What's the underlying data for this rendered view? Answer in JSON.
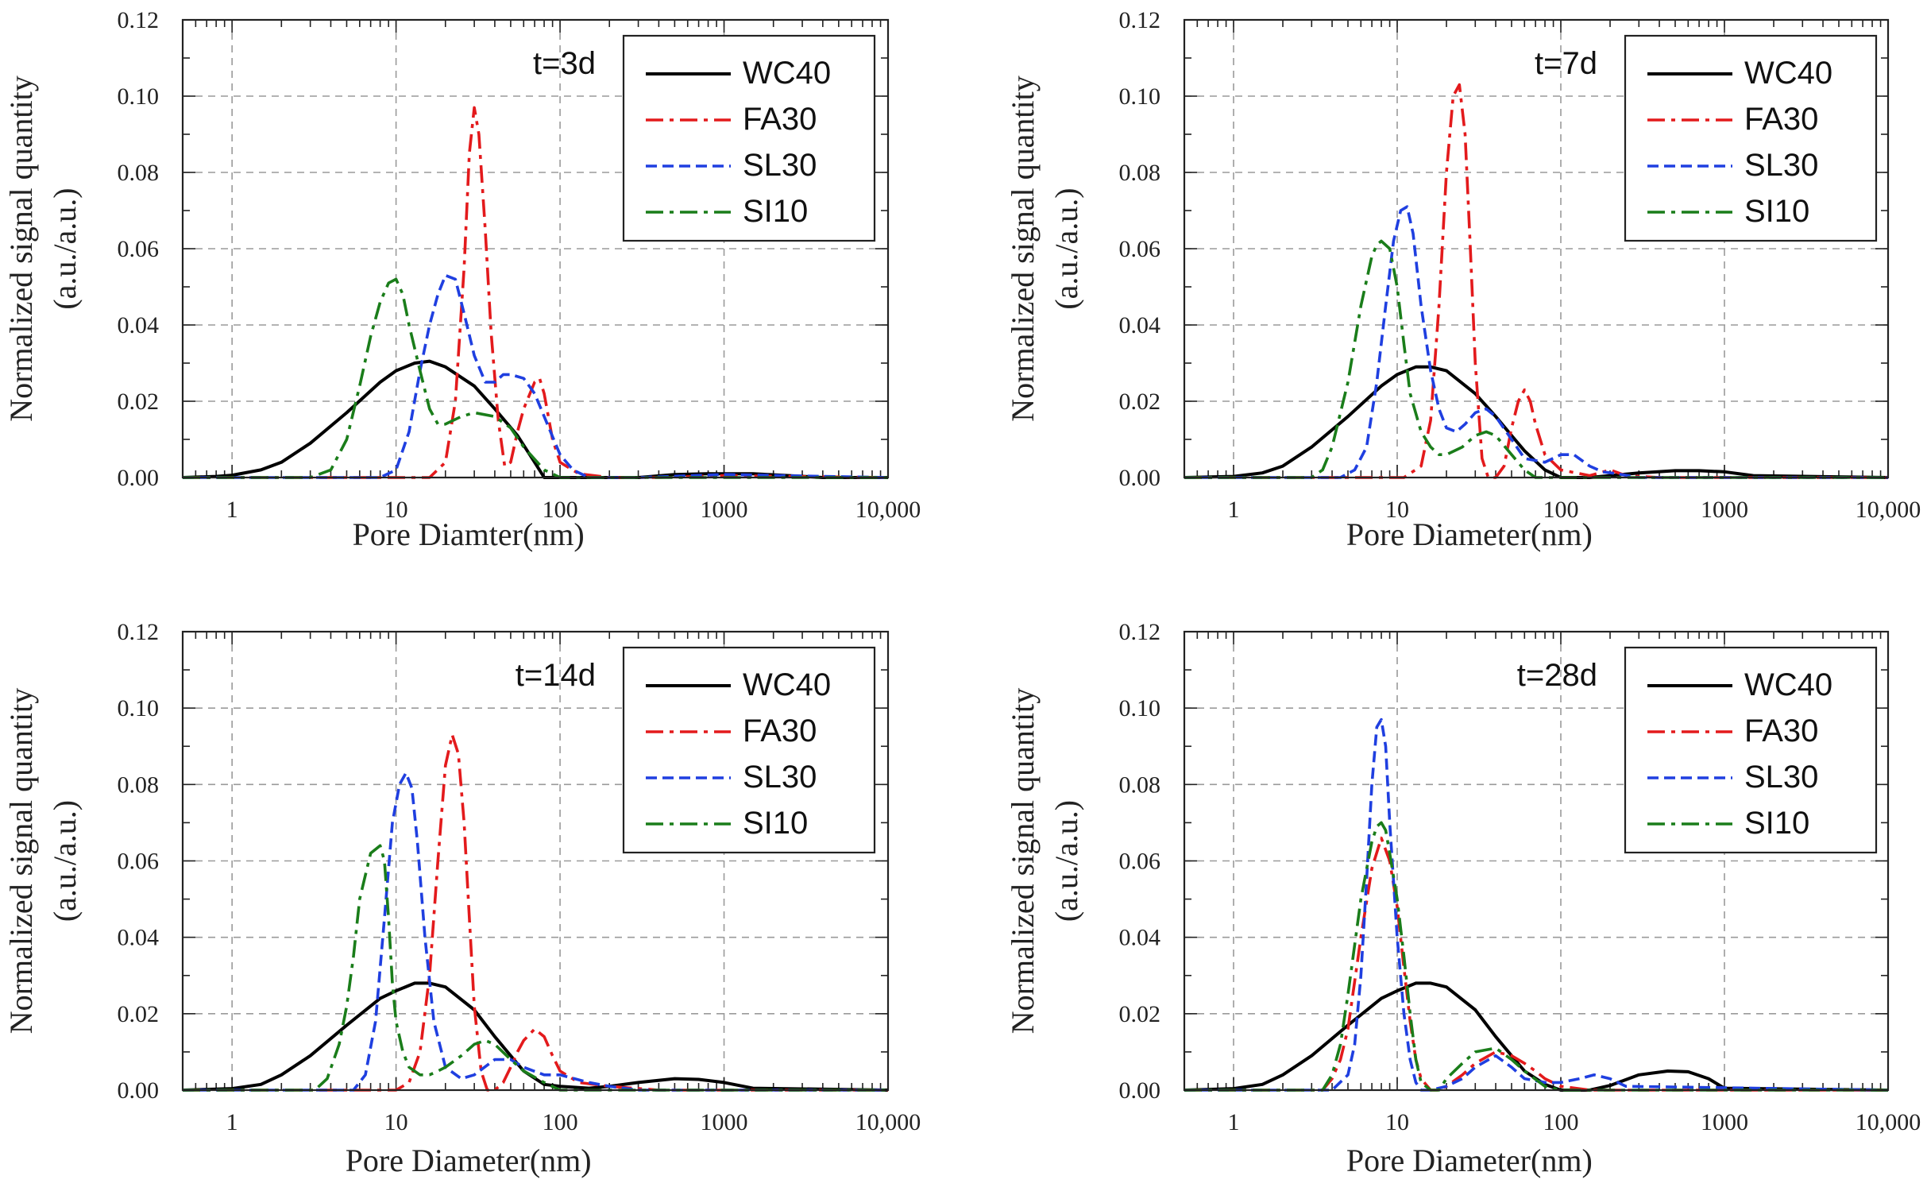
{
  "chart_data": [
    {
      "type": "line",
      "title": "t=3d",
      "xlabel": "Pore Diamter(nm)",
      "ylabel_line1": "Normalized signal quantity",
      "ylabel_line2": "(a.u./a.u.)",
      "xscale": "log",
      "xlim": [
        0.5,
        10000
      ],
      "ylim": [
        0,
        0.12
      ],
      "grid": true,
      "legend_position": "top-right",
      "x_ticks": [
        "1",
        "10",
        "100",
        "1000",
        "10,000"
      ],
      "y_ticks": [
        "0.00",
        "0.02",
        "0.04",
        "0.06",
        "0.08",
        "0.10",
        "0.12"
      ],
      "series": [
        {
          "name": "WC40",
          "color": "#000000",
          "style": "solid",
          "x": [
            0.5,
            0.8,
            1,
            1.5,
            2,
            3,
            5,
            8,
            10,
            13,
            16,
            20,
            30,
            40,
            55,
            70,
            80,
            100,
            150,
            300,
            500,
            800,
            1000,
            1500,
            2500,
            4000,
            10000
          ],
          "y": [
            0,
            0.0003,
            0.0006,
            0.002,
            0.004,
            0.009,
            0.017,
            0.025,
            0.028,
            0.03,
            0.0305,
            0.029,
            0.024,
            0.018,
            0.011,
            0.004,
            0,
            0,
            0,
            0,
            0.0008,
            0.001,
            0.001,
            0.001,
            0.0005,
            0,
            0
          ]
        },
        {
          "name": "FA30",
          "color": "#e31a1c",
          "style": "dashdot",
          "x": [
            0.5,
            10,
            16,
            20,
            23,
            26,
            28,
            30,
            32,
            35,
            38,
            42,
            46,
            50,
            55,
            60,
            70,
            75,
            80,
            90,
            100,
            130,
            200,
            400,
            1000,
            10000
          ],
          "y": [
            0,
            0,
            0,
            0.004,
            0.02,
            0.055,
            0.085,
            0.097,
            0.09,
            0.065,
            0.038,
            0.015,
            0.003,
            0.004,
            0.012,
            0.018,
            0.025,
            0.026,
            0.022,
            0.01,
            0.004,
            0.001,
            0,
            0,
            0.0005,
            0
          ]
        },
        {
          "name": "SL30",
          "color": "#1f3fe0",
          "style": "dash",
          "x": [
            0.5,
            8,
            10,
            12,
            14,
            16,
            18,
            20,
            23,
            26,
            30,
            35,
            40,
            45,
            50,
            60,
            70,
            80,
            100,
            120,
            150,
            300,
            1000,
            10000
          ],
          "y": [
            0,
            0,
            0.002,
            0.012,
            0.028,
            0.04,
            0.048,
            0.053,
            0.052,
            0.043,
            0.032,
            0.025,
            0.025,
            0.027,
            0.027,
            0.026,
            0.022,
            0.016,
            0.006,
            0.002,
            0,
            0,
            0.0008,
            0
          ]
        },
        {
          "name": "SI10",
          "color": "#1a7d1a",
          "style": "dashdot",
          "x": [
            0.5,
            3,
            4,
            5,
            6,
            7,
            8,
            9,
            10,
            11,
            12,
            14,
            16,
            18,
            20,
            25,
            30,
            40,
            50,
            60,
            80,
            100,
            10000
          ],
          "y": [
            0,
            0,
            0.002,
            0.01,
            0.024,
            0.037,
            0.046,
            0.051,
            0.052,
            0.048,
            0.04,
            0.028,
            0.018,
            0.014,
            0.014,
            0.016,
            0.017,
            0.016,
            0.013,
            0.008,
            0.002,
            0,
            0
          ]
        }
      ]
    },
    {
      "type": "line",
      "title": "t=7d",
      "xlabel": "Pore Diameter(nm)",
      "ylabel_line1": "Normalized signal quantity",
      "ylabel_line2": "(a.u./a.u.)",
      "xscale": "log",
      "xlim": [
        0.5,
        10000
      ],
      "ylim": [
        0,
        0.12
      ],
      "grid": true,
      "legend_position": "top-right",
      "x_ticks": [
        "1",
        "10",
        "100",
        "1000",
        "10,000"
      ],
      "y_ticks": [
        "0.00",
        "0.02",
        "0.04",
        "0.06",
        "0.08",
        "0.10",
        "0.12"
      ],
      "series": [
        {
          "name": "WC40",
          "color": "#000000",
          "style": "solid",
          "x": [
            0.5,
            1,
            1.5,
            2,
            3,
            5,
            8,
            10,
            13,
            16,
            20,
            30,
            40,
            50,
            60,
            80,
            100,
            150,
            300,
            500,
            700,
            1000,
            1500,
            10000
          ],
          "y": [
            0,
            0.0003,
            0.0012,
            0.003,
            0.008,
            0.016,
            0.024,
            0.027,
            0.029,
            0.029,
            0.028,
            0.022,
            0.016,
            0.011,
            0.007,
            0.002,
            0,
            0,
            0.0012,
            0.0018,
            0.0018,
            0.0015,
            0.0005,
            0
          ]
        },
        {
          "name": "FA30",
          "color": "#e31a1c",
          "style": "dashdot",
          "x": [
            0.5,
            11,
            14,
            16,
            18,
            20,
            22,
            24,
            26,
            28,
            30,
            33,
            36,
            40,
            45,
            50,
            55,
            60,
            65,
            70,
            80,
            100,
            150,
            200,
            250,
            400,
            10000
          ],
          "y": [
            0,
            0,
            0.003,
            0.015,
            0.045,
            0.08,
            0.1,
            0.103,
            0.09,
            0.06,
            0.03,
            0.005,
            0,
            0,
            0.003,
            0.013,
            0.02,
            0.023,
            0.02,
            0.014,
            0.006,
            0.002,
            0.0005,
            0.002,
            0.0005,
            0,
            0
          ]
        },
        {
          "name": "SL30",
          "color": "#1f3fe0",
          "style": "dash",
          "x": [
            0.5,
            4.5,
            5.5,
            6.5,
            7.5,
            8.5,
            9.5,
            10.5,
            11.5,
            12.5,
            14,
            16,
            18,
            20,
            23,
            26,
            30,
            35,
            40,
            50,
            60,
            80,
            100,
            120,
            150,
            180,
            220,
            300,
            10000
          ],
          "y": [
            0,
            0,
            0.002,
            0.008,
            0.025,
            0.045,
            0.062,
            0.07,
            0.071,
            0.064,
            0.045,
            0.028,
            0.018,
            0.013,
            0.012,
            0.014,
            0.017,
            0.018,
            0.016,
            0.01,
            0.005,
            0.004,
            0.006,
            0.006,
            0.003,
            0.0015,
            0.001,
            0,
            0
          ]
        },
        {
          "name": "SI10",
          "color": "#1a7d1a",
          "style": "dashdot",
          "x": [
            0.5,
            3,
            3.5,
            4,
            5,
            6,
            7,
            7.5,
            8,
            9,
            10,
            11,
            12,
            14,
            16,
            18,
            20,
            25,
            30,
            35,
            40,
            50,
            60,
            70,
            10000
          ],
          "y": [
            0,
            0,
            0.002,
            0.008,
            0.025,
            0.045,
            0.058,
            0.061,
            0.062,
            0.06,
            0.05,
            0.035,
            0.022,
            0.012,
            0.008,
            0.006,
            0.006,
            0.008,
            0.011,
            0.012,
            0.011,
            0.006,
            0.002,
            0,
            0
          ]
        }
      ]
    },
    {
      "type": "line",
      "title": "t=14d",
      "xlabel": "Pore Diameter(nm)",
      "ylabel_line1": "Normalized signal quantity",
      "ylabel_line2": "(a.u./a.u.)",
      "xscale": "log",
      "xlim": [
        0.5,
        10000
      ],
      "ylim": [
        0,
        0.12
      ],
      "grid": true,
      "legend_position": "top-right",
      "x_ticks": [
        "1",
        "10",
        "100",
        "1000",
        "10,000"
      ],
      "y_ticks": [
        "0.00",
        "0.02",
        "0.04",
        "0.06",
        "0.08",
        "0.10",
        "0.12"
      ],
      "series": [
        {
          "name": "WC40",
          "color": "#000000",
          "style": "solid",
          "x": [
            0.5,
            1,
            1.5,
            2,
            3,
            5,
            8,
            10,
            13,
            16,
            20,
            30,
            40,
            50,
            60,
            80,
            100,
            150,
            200,
            300,
            500,
            700,
            1000,
            1500,
            10000
          ],
          "y": [
            0,
            0.0004,
            0.0015,
            0.004,
            0.009,
            0.017,
            0.024,
            0.026,
            0.028,
            0.028,
            0.027,
            0.021,
            0.014,
            0.009,
            0.005,
            0.0015,
            0.001,
            0.0005,
            0.001,
            0.002,
            0.003,
            0.0028,
            0.002,
            0.0005,
            0
          ]
        },
        {
          "name": "FA30",
          "color": "#e31a1c",
          "style": "dashdot",
          "x": [
            0.5,
            10,
            12,
            14,
            16,
            18,
            20,
            22,
            24,
            26,
            28,
            30,
            33,
            36,
            40,
            45,
            50,
            55,
            60,
            70,
            80,
            90,
            100,
            130,
            200,
            400,
            10000
          ],
          "y": [
            0,
            0,
            0.002,
            0.01,
            0.03,
            0.06,
            0.085,
            0.093,
            0.088,
            0.07,
            0.045,
            0.022,
            0.005,
            0,
            0,
            0.002,
            0.006,
            0.01,
            0.013,
            0.016,
            0.014,
            0.009,
            0.005,
            0.002,
            0.001,
            0,
            0
          ]
        },
        {
          "name": "SL30",
          "color": "#1f3fe0",
          "style": "dash",
          "x": [
            0.5,
            5.5,
            6.5,
            7.5,
            8.5,
            9.5,
            10.5,
            11.5,
            12.5,
            13.5,
            15,
            17,
            20,
            25,
            30,
            40,
            50,
            60,
            80,
            100,
            150,
            200,
            300,
            10000
          ],
          "y": [
            0,
            0,
            0.004,
            0.018,
            0.045,
            0.07,
            0.08,
            0.083,
            0.079,
            0.065,
            0.04,
            0.018,
            0.006,
            0.003,
            0.004,
            0.008,
            0.008,
            0.006,
            0.004,
            0.004,
            0.002,
            0.001,
            0,
            0
          ]
        },
        {
          "name": "SI10",
          "color": "#1a7d1a",
          "style": "dashdot",
          "x": [
            0.5,
            3.2,
            3.8,
            4.5,
            5,
            5.5,
            6,
            7,
            8,
            8.5,
            9,
            9.5,
            10,
            11,
            12,
            14,
            16,
            18,
            20,
            25,
            30,
            35,
            40,
            50,
            60,
            80,
            100,
            10000
          ],
          "y": [
            0,
            0,
            0.003,
            0.012,
            0.022,
            0.035,
            0.05,
            0.062,
            0.064,
            0.06,
            0.045,
            0.028,
            0.018,
            0.01,
            0.006,
            0.004,
            0.004,
            0.005,
            0.006,
            0.009,
            0.012,
            0.013,
            0.012,
            0.008,
            0.005,
            0.002,
            0,
            0
          ]
        }
      ]
    },
    {
      "type": "line",
      "title": "t=28d",
      "xlabel": "Pore Diameter(nm)",
      "ylabel_line1": "Normalized signal quantity",
      "ylabel_line2": "(a.u./a.u.)",
      "xscale": "log",
      "xlim": [
        0.5,
        10000
      ],
      "ylim": [
        0,
        0.12
      ],
      "grid": true,
      "legend_position": "top-right",
      "x_ticks": [
        "1",
        "10",
        "100",
        "1000",
        "10,000"
      ],
      "y_ticks": [
        "0.00",
        "0.02",
        "0.04",
        "0.06",
        "0.08",
        "0.10",
        "0.12"
      ],
      "series": [
        {
          "name": "WC40",
          "color": "#000000",
          "style": "solid",
          "x": [
            0.5,
            1,
            1.5,
            2,
            3,
            5,
            8,
            10,
            13,
            16,
            20,
            30,
            40,
            50,
            60,
            80,
            100,
            150,
            200,
            300,
            450,
            600,
            800,
            1000,
            10000
          ],
          "y": [
            0,
            0.0004,
            0.0015,
            0.004,
            0.009,
            0.017,
            0.024,
            0.026,
            0.028,
            0.028,
            0.027,
            0.021,
            0.014,
            0.009,
            0.005,
            0.0015,
            0,
            0,
            0.0012,
            0.004,
            0.005,
            0.0048,
            0.003,
            0.0005,
            0
          ]
        },
        {
          "name": "FA30",
          "color": "#e31a1c",
          "style": "dashdot",
          "x": [
            0.5,
            3.5,
            4,
            4.5,
            5,
            6,
            7,
            8,
            9,
            10,
            11,
            12,
            13,
            14,
            16,
            18,
            20,
            25,
            30,
            40,
            50,
            60,
            70,
            80,
            100,
            150,
            10000
          ],
          "y": [
            0,
            0,
            0.003,
            0.008,
            0.016,
            0.04,
            0.058,
            0.066,
            0.06,
            0.048,
            0.032,
            0.018,
            0.008,
            0.003,
            0,
            0,
            0.001,
            0.004,
            0.007,
            0.01,
            0.009,
            0.007,
            0.005,
            0.003,
            0.001,
            0,
            0
          ]
        },
        {
          "name": "SL30",
          "color": "#1f3fe0",
          "style": "dash",
          "x": [
            0.5,
            4,
            5,
            5.5,
            6,
            6.5,
            7,
            7.5,
            8,
            8.5,
            9,
            10,
            11,
            12,
            13,
            14,
            16,
            20,
            25,
            30,
            40,
            50,
            60,
            80,
            100,
            130,
            160,
            200,
            250,
            10000
          ],
          "y": [
            0,
            0,
            0.004,
            0.012,
            0.03,
            0.055,
            0.08,
            0.095,
            0.097,
            0.09,
            0.07,
            0.04,
            0.02,
            0.008,
            0.002,
            0,
            0,
            0.001,
            0.003,
            0.006,
            0.009,
            0.006,
            0.003,
            0.002,
            0.002,
            0.003,
            0.004,
            0.003,
            0.001,
            0
          ]
        },
        {
          "name": "SI10",
          "color": "#1a7d1a",
          "style": "dashdot",
          "x": [
            0.5,
            3.5,
            4,
            4.5,
            5,
            6,
            7,
            7.5,
            8,
            8.5,
            9,
            10,
            11,
            12,
            13,
            14,
            16,
            18,
            20,
            25,
            30,
            40,
            50,
            60,
            80,
            100,
            10000
          ],
          "y": [
            0,
            0,
            0.004,
            0.012,
            0.025,
            0.05,
            0.065,
            0.069,
            0.07,
            0.068,
            0.062,
            0.05,
            0.035,
            0.02,
            0.008,
            0.002,
            0,
            0,
            0.003,
            0.007,
            0.01,
            0.011,
            0.008,
            0.005,
            0.001,
            0,
            0
          ]
        }
      ]
    }
  ]
}
